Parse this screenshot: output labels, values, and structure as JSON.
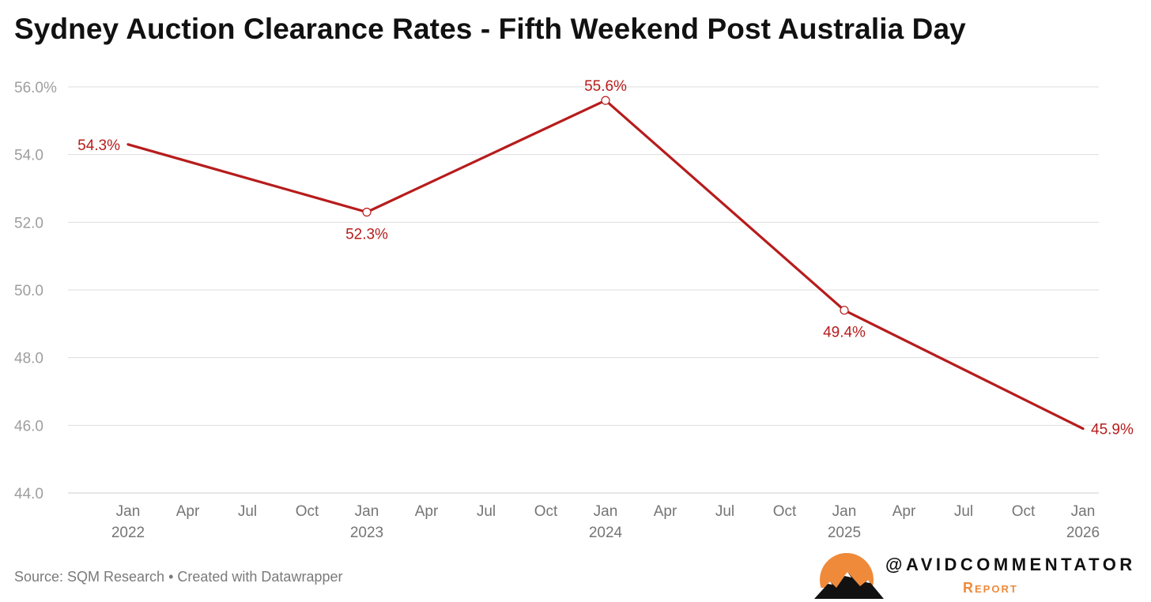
{
  "title": "Sydney Auction Clearance Rates - Fifth Weekend Post Australia Day",
  "footer": "Source: SQM Research • Created with Datawrapper",
  "brand": {
    "handle": "@AVIDCOMMENTATOR",
    "sub": "Report"
  },
  "colors": {
    "line": "#b71c1c",
    "grid": "#dedede",
    "axis_text": "#9e9e9e",
    "tick_text": "#757575",
    "brand_orange": "#ef8a3a"
  },
  "chart_data": {
    "type": "line",
    "title": "Sydney Auction Clearance Rates - Fifth Weekend Post Australia Day",
    "ylim": [
      44,
      56
    ],
    "y_ticks": [
      "44.0",
      "46.0",
      "48.0",
      "50.0",
      "52.0",
      "54.0",
      "56.0%"
    ],
    "y_tick_values": [
      44,
      46,
      48,
      50,
      52,
      54,
      56
    ],
    "x_ticks": [
      {
        "date": "2022-01",
        "month": "Jan",
        "year": "2022"
      },
      {
        "date": "2022-04",
        "month": "Apr",
        "year": ""
      },
      {
        "date": "2022-07",
        "month": "Jul",
        "year": ""
      },
      {
        "date": "2022-10",
        "month": "Oct",
        "year": ""
      },
      {
        "date": "2023-01",
        "month": "Jan",
        "year": "2023"
      },
      {
        "date": "2023-04",
        "month": "Apr",
        "year": ""
      },
      {
        "date": "2023-07",
        "month": "Jul",
        "year": ""
      },
      {
        "date": "2023-10",
        "month": "Oct",
        "year": ""
      },
      {
        "date": "2024-01",
        "month": "Jan",
        "year": "2024"
      },
      {
        "date": "2024-04",
        "month": "Apr",
        "year": ""
      },
      {
        "date": "2024-07",
        "month": "Jul",
        "year": ""
      },
      {
        "date": "2024-10",
        "month": "Oct",
        "year": ""
      },
      {
        "date": "2025-01",
        "month": "Jan",
        "year": "2025"
      },
      {
        "date": "2025-04",
        "month": "Apr",
        "year": ""
      },
      {
        "date": "2025-07",
        "month": "Jul",
        "year": ""
      },
      {
        "date": "2025-10",
        "month": "Oct",
        "year": ""
      },
      {
        "date": "2026-01",
        "month": "Jan",
        "year": "2026"
      }
    ],
    "series": [
      {
        "points": [
          {
            "x": "2022-01",
            "y": 54.3,
            "label": "54.3%",
            "label_pos": "left"
          },
          {
            "x": "2023-01",
            "y": 52.3,
            "label": "52.3%",
            "label_pos": "below"
          },
          {
            "x": "2024-01",
            "y": 55.6,
            "label": "55.6%",
            "label_pos": "above"
          },
          {
            "x": "2025-01",
            "y": 49.4,
            "label": "49.4%",
            "label_pos": "below"
          },
          {
            "x": "2026-01",
            "y": 45.9,
            "label": "45.9%",
            "label_pos": "right"
          }
        ]
      }
    ],
    "grid": true,
    "legend": "none"
  }
}
